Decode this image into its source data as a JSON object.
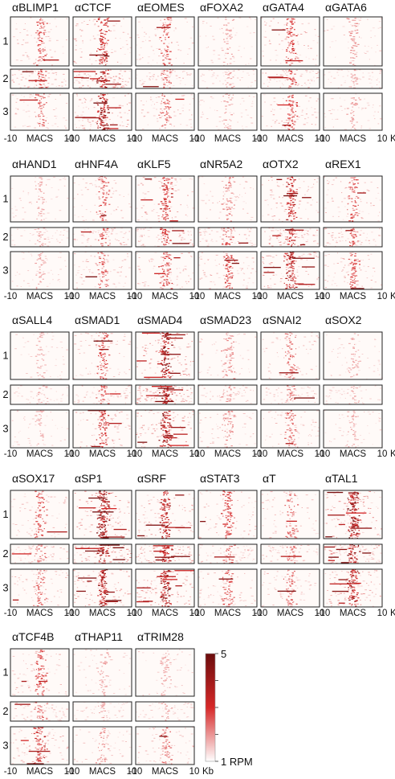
{
  "chart_data": {
    "type": "heatmap",
    "title": "",
    "xlabel": "",
    "ylabel": "",
    "cluster_labels": [
      "1",
      "2",
      "3"
    ],
    "x_tick_labels": [
      "-10",
      "MACS",
      "10"
    ],
    "x_unit": "Kb",
    "xlim": [
      -10,
      10
    ],
    "colorbar": {
      "max_label": "5",
      "min_label": "1 RPM",
      "min": 1,
      "max": 5,
      "color_low": "#ffffff",
      "color_high": "#6b0d0d"
    },
    "antibodies": [
      {
        "name": "αBLIMP1",
        "intensity": [
          0.35,
          0.4,
          0.3
        ]
      },
      {
        "name": "αCTCF",
        "intensity": [
          0.55,
          0.75,
          0.85
        ]
      },
      {
        "name": "αEOMES",
        "intensity": [
          0.35,
          0.3,
          0.3
        ]
      },
      {
        "name": "αFOXA2",
        "intensity": [
          0.08,
          0.08,
          0.08
        ]
      },
      {
        "name": "αGATA4",
        "intensity": [
          0.45,
          0.4,
          0.4
        ]
      },
      {
        "name": "αGATA6",
        "intensity": [
          0.15,
          0.12,
          0.12
        ]
      },
      {
        "name": "αHAND1",
        "intensity": [
          0.08,
          0.08,
          0.08
        ]
      },
      {
        "name": "αHNF4A",
        "intensity": [
          0.35,
          0.35,
          0.35
        ]
      },
      {
        "name": "αKLF5",
        "intensity": [
          0.55,
          0.45,
          0.45
        ]
      },
      {
        "name": "αNR5A2",
        "intensity": [
          0.2,
          0.35,
          0.45
        ]
      },
      {
        "name": "αOTX2",
        "intensity": [
          0.6,
          0.6,
          0.75
        ]
      },
      {
        "name": "αREX1",
        "intensity": [
          0.35,
          0.35,
          0.35
        ]
      },
      {
        "name": "αSALL4",
        "intensity": [
          0.05,
          0.05,
          0.05
        ]
      },
      {
        "name": "αSMAD1",
        "intensity": [
          0.4,
          0.35,
          0.55
        ]
      },
      {
        "name": "αSMAD4",
        "intensity": [
          0.9,
          0.75,
          0.8
        ]
      },
      {
        "name": "αSMAD23",
        "intensity": [
          0.2,
          0.15,
          0.2
        ]
      },
      {
        "name": "αSNAI2",
        "intensity": [
          0.3,
          0.25,
          0.3
        ]
      },
      {
        "name": "αSOX2",
        "intensity": [
          0.08,
          0.08,
          0.08
        ]
      },
      {
        "name": "αSOX17",
        "intensity": [
          0.35,
          0.25,
          0.3
        ]
      },
      {
        "name": "αSP1",
        "intensity": [
          0.9,
          0.8,
          0.8
        ]
      },
      {
        "name": "αSRF",
        "intensity": [
          0.7,
          0.75,
          0.85
        ]
      },
      {
        "name": "αSTAT3",
        "intensity": [
          0.45,
          0.3,
          0.35
        ]
      },
      {
        "name": "αT",
        "intensity": [
          0.3,
          0.25,
          0.3
        ]
      },
      {
        "name": "αTAL1",
        "intensity": [
          0.95,
          0.8,
          0.75
        ]
      },
      {
        "name": "αTCF4B",
        "intensity": [
          0.4,
          0.3,
          0.55
        ]
      },
      {
        "name": "αTHAP11",
        "intensity": [
          0.1,
          0.08,
          0.15
        ]
      },
      {
        "name": "αTRIM28",
        "intensity": [
          0.1,
          0.1,
          0.3
        ]
      }
    ]
  }
}
